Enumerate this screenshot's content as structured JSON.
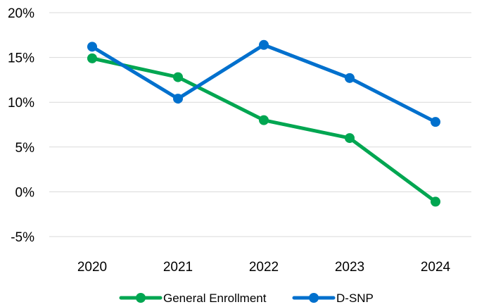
{
  "chart_data": {
    "type": "line",
    "title": "",
    "xlabel": "",
    "ylabel": "",
    "categories": [
      "2020",
      "2021",
      "2022",
      "2023",
      "2024"
    ],
    "y_ticks": [
      "-5%",
      "0%",
      "5%",
      "10%",
      "15%",
      "20%"
    ],
    "y_tick_values": [
      -5,
      0,
      5,
      10,
      15,
      20
    ],
    "ylim": [
      -5,
      20
    ],
    "grid": "horizontal",
    "legend_position": "bottom",
    "series": [
      {
        "name": "General Enrollment",
        "color": "#00a651",
        "values": [
          14.9,
          12.8,
          8.0,
          6.0,
          -1.1
        ]
      },
      {
        "name": "D-SNP",
        "color": "#0070cd",
        "values": [
          16.2,
          10.4,
          16.4,
          12.7,
          7.8
        ]
      }
    ]
  }
}
